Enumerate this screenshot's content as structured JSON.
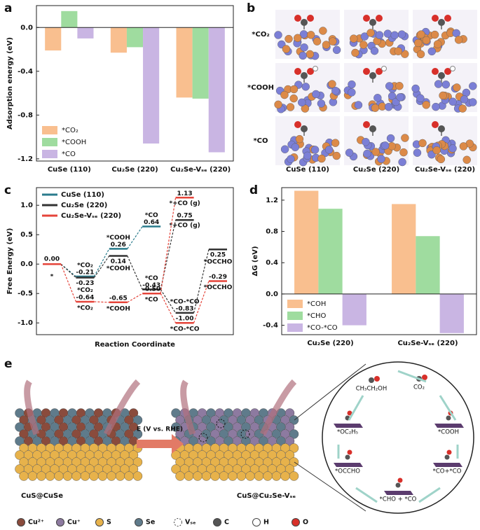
{
  "chart_data": [
    {
      "type": "bar",
      "panel": "a",
      "ylabel": "Adsorption energy (eV)",
      "categories": [
        "CuSe (110)",
        "Cu₂Se (220)",
        "Cu₂Se-Vₛₑ (220)"
      ],
      "series": [
        {
          "name": "*CO₂",
          "color": "#f9bf8f",
          "values": [
            -0.21,
            -0.23,
            -0.64
          ]
        },
        {
          "name": "*COOH",
          "color": "#9fdc9f",
          "values": [
            0.15,
            -0.18,
            -0.65
          ]
        },
        {
          "name": "*CO",
          "color": "#c9b5e3",
          "values": [
            -0.1,
            -1.06,
            -1.14
          ]
        }
      ],
      "ylim": [
        -1.22,
        0.2
      ],
      "yticks": [
        -1.2,
        -0.8,
        -0.4,
        {
          "value": 0,
          "label": "0.0"
        }
      ],
      "zero_line": true,
      "legend": "lower left"
    },
    {
      "type": "step",
      "panel": "c",
      "xlabel": "Reaction Coordinate",
      "ylabel": "Free Energy (eV)",
      "ylim": [
        -1.2,
        1.3
      ],
      "yticks": [
        {
          "value": -1,
          "label": "-1.0"
        },
        -0.5,
        {
          "value": 0,
          "label": "0.0"
        },
        0.5,
        {
          "value": 1,
          "label": "1.0"
        }
      ],
      "legend": "upper left",
      "series": [
        {
          "name": "CuSe (110)",
          "color": "#2a7b8c",
          "values": [
            0,
            -0.21,
            0.26,
            0.64,
            null,
            null
          ],
          "value_labels": [
            null,
            "-0.21",
            "0.26",
            "0.64",
            null,
            null
          ],
          "state_labels": [
            null,
            "*CO₂",
            "*COOH",
            "*CO",
            null,
            null
          ]
        },
        {
          "name": "Cu₂Se (220)",
          "color": "#333333",
          "values": [
            0,
            -0.23,
            0.14,
            -0.43,
            -0.83,
            0.25
          ],
          "value_labels": [
            "0.00",
            "-0.23",
            "0.14",
            "-0.43",
            "-0.83",
            "0.25"
          ],
          "state_labels": [
            "*",
            "*CO₂",
            "*COOH",
            "*CO",
            "*CO-*CO",
            "*OCCHO"
          ],
          "gas_values": [
            null,
            null,
            null,
            null,
            0.75,
            null
          ],
          "gas_value_labels": [
            null,
            null,
            null,
            null,
            "0.75",
            null
          ],
          "gas_state_labels": [
            null,
            null,
            null,
            null,
            "*+CO (g)",
            null
          ]
        },
        {
          "name": "Cu₂Se-Vₛₑ (220)",
          "color": "#e5443a",
          "values": [
            0,
            -0.64,
            -0.65,
            -0.5,
            -1.0,
            -0.29
          ],
          "value_labels": [
            null,
            "-0.64",
            "-0.65",
            "-0.50",
            "-1.00",
            "-0.29"
          ],
          "state_labels": [
            null,
            "*CO₂",
            "*COOH",
            "*CO",
            "*CO-*CO",
            "*OCCHO"
          ],
          "gas_values": [
            null,
            null,
            null,
            null,
            1.13,
            null
          ],
          "gas_value_labels": [
            null,
            null,
            null,
            null,
            "1.13",
            null
          ],
          "gas_state_labels": [
            null,
            null,
            null,
            null,
            "*+CO (g)",
            null
          ]
        }
      ]
    },
    {
      "type": "bar",
      "panel": "d",
      "ylabel": "ΔG (eV)",
      "categories": [
        "Cu₂Se (220)",
        "Cu₂Se-Vₛₑ (220)"
      ],
      "series": [
        {
          "name": "*COH",
          "color": "#f9bf8f",
          "values": [
            1.32,
            1.15
          ]
        },
        {
          "name": "*CHO",
          "color": "#9fdc9f",
          "values": [
            1.09,
            0.74
          ]
        },
        {
          "name": "*CO-*CO",
          "color": "#c9b5e3",
          "values": [
            -0.4,
            -0.5
          ]
        }
      ],
      "ylim": [
        -0.52,
        1.36
      ],
      "yticks": [
        -0.4,
        {
          "value": 0,
          "label": "0.0"
        },
        0.4,
        0.8,
        1.2
      ],
      "zero_line": true,
      "legend": "lower left"
    }
  ],
  "panel_b": {
    "panel": "b",
    "rows": [
      "*CO₂",
      "*COOH",
      "*CO"
    ],
    "columns": [
      "CuSe (110)",
      "Cu₂Se (220)",
      "Cu₂Se-Vₛₑ (220)"
    ]
  },
  "panel_e": {
    "panel": "e",
    "bias": "E (V vs. RHE)",
    "left_catalyst": "CuS@CuSe",
    "right_catalyst": "CuS@Cu₂Se-Vₛₑ",
    "cycle": [
      "CH₃CH₂OH",
      "CO₂",
      "*COOH",
      "*CO+*CO",
      "*CHO + *CO",
      "*OCCHO",
      "*OC₂H₅"
    ],
    "legend": [
      "Cu²⁺",
      "Cu⁺",
      "S",
      "Se",
      "Vₛₑ",
      "C",
      "H",
      "O"
    ]
  }
}
